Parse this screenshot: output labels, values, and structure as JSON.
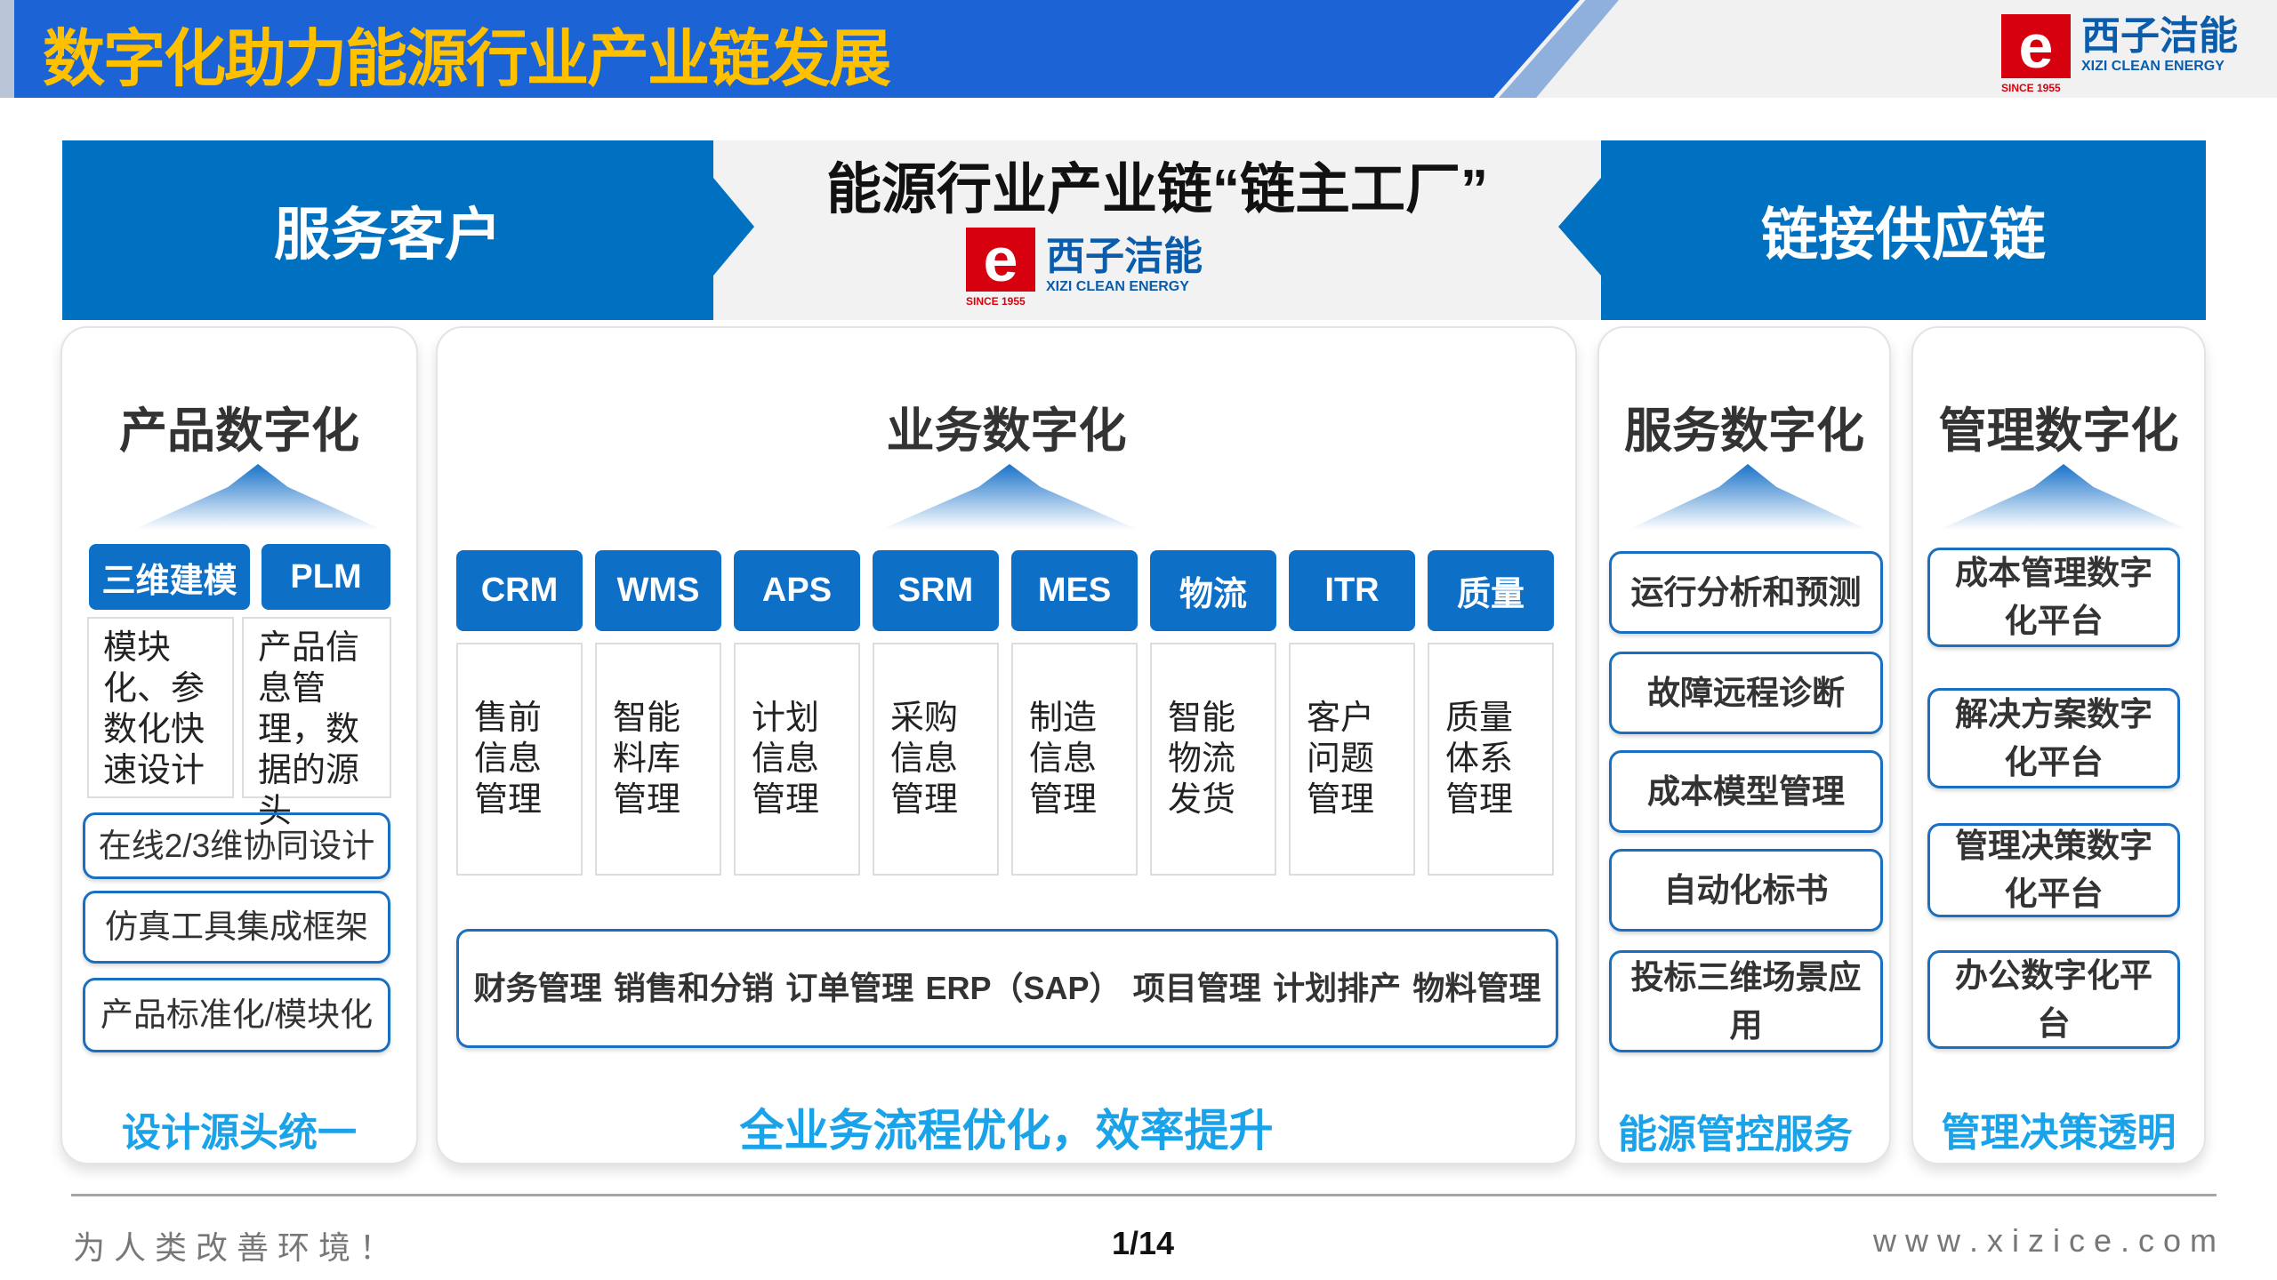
{
  "header": {
    "title": "数字化助力能源行业产业链发展"
  },
  "logo": {
    "mark": "e",
    "cn": "西子洁能",
    "en": "XIZI CLEAN ENERGY",
    "since": "SINCE 1955"
  },
  "banner": {
    "left": "服务客户",
    "center": "能源行业产业链“链主工厂”",
    "right": "链接供应链"
  },
  "product": {
    "title": "产品数字化",
    "buttons": [
      "三维建模",
      "PLM"
    ],
    "descs": [
      "模块化、参数化快速设计",
      "产品信息管理，数据的源头"
    ],
    "items": [
      "在线2/3维协同设计",
      "仿真工具集成框架",
      "产品标准化/模块化"
    ],
    "footer": "设计源头统一"
  },
  "business": {
    "title": "业务数字化",
    "modules": [
      {
        "name": "CRM",
        "desc": "售前信息管理"
      },
      {
        "name": "WMS",
        "desc": "智能料库管理"
      },
      {
        "name": "APS",
        "desc": "计划信息管理"
      },
      {
        "name": "SRM",
        "desc": "采购信息管理"
      },
      {
        "name": "MES",
        "desc": "制造信息管理"
      },
      {
        "name": "物流",
        "desc": "智能物流发货"
      },
      {
        "name": "ITR",
        "desc": "客户问题管理"
      },
      {
        "name": "质量",
        "desc": "质量体系管理"
      }
    ],
    "erp_items": [
      "财务管理",
      "销售和分销",
      "订单管理",
      "ERP（SAP）",
      "项目管理",
      "计划排产",
      "物料管理"
    ],
    "footer": "全业务流程优化，效率提升"
  },
  "service": {
    "title": "服务数字化",
    "items": [
      "运行分析和预测",
      "故障远程诊断",
      "成本模型管理",
      "自动化标书",
      "投标三维场景应用"
    ],
    "footer": "能源管控服务"
  },
  "management": {
    "title": "管理数字化",
    "items": [
      "成本管理数字化平台",
      "解决方案数字化平台",
      "管理决策数字化平台",
      "办公数字化平台"
    ],
    "footer": "管理决策透明"
  },
  "footer": {
    "slogan": "为 人 类 改 善 环 境 ！",
    "page": "1/14",
    "website": "w w w . x i z i c e . c o m"
  },
  "colors": {
    "header_blue": "#1c63d5",
    "title_yellow": "#ffc000",
    "banner_blue": "#0070c0",
    "accent_cyan": "#1aa3e8",
    "brand_red": "#d7000f"
  }
}
